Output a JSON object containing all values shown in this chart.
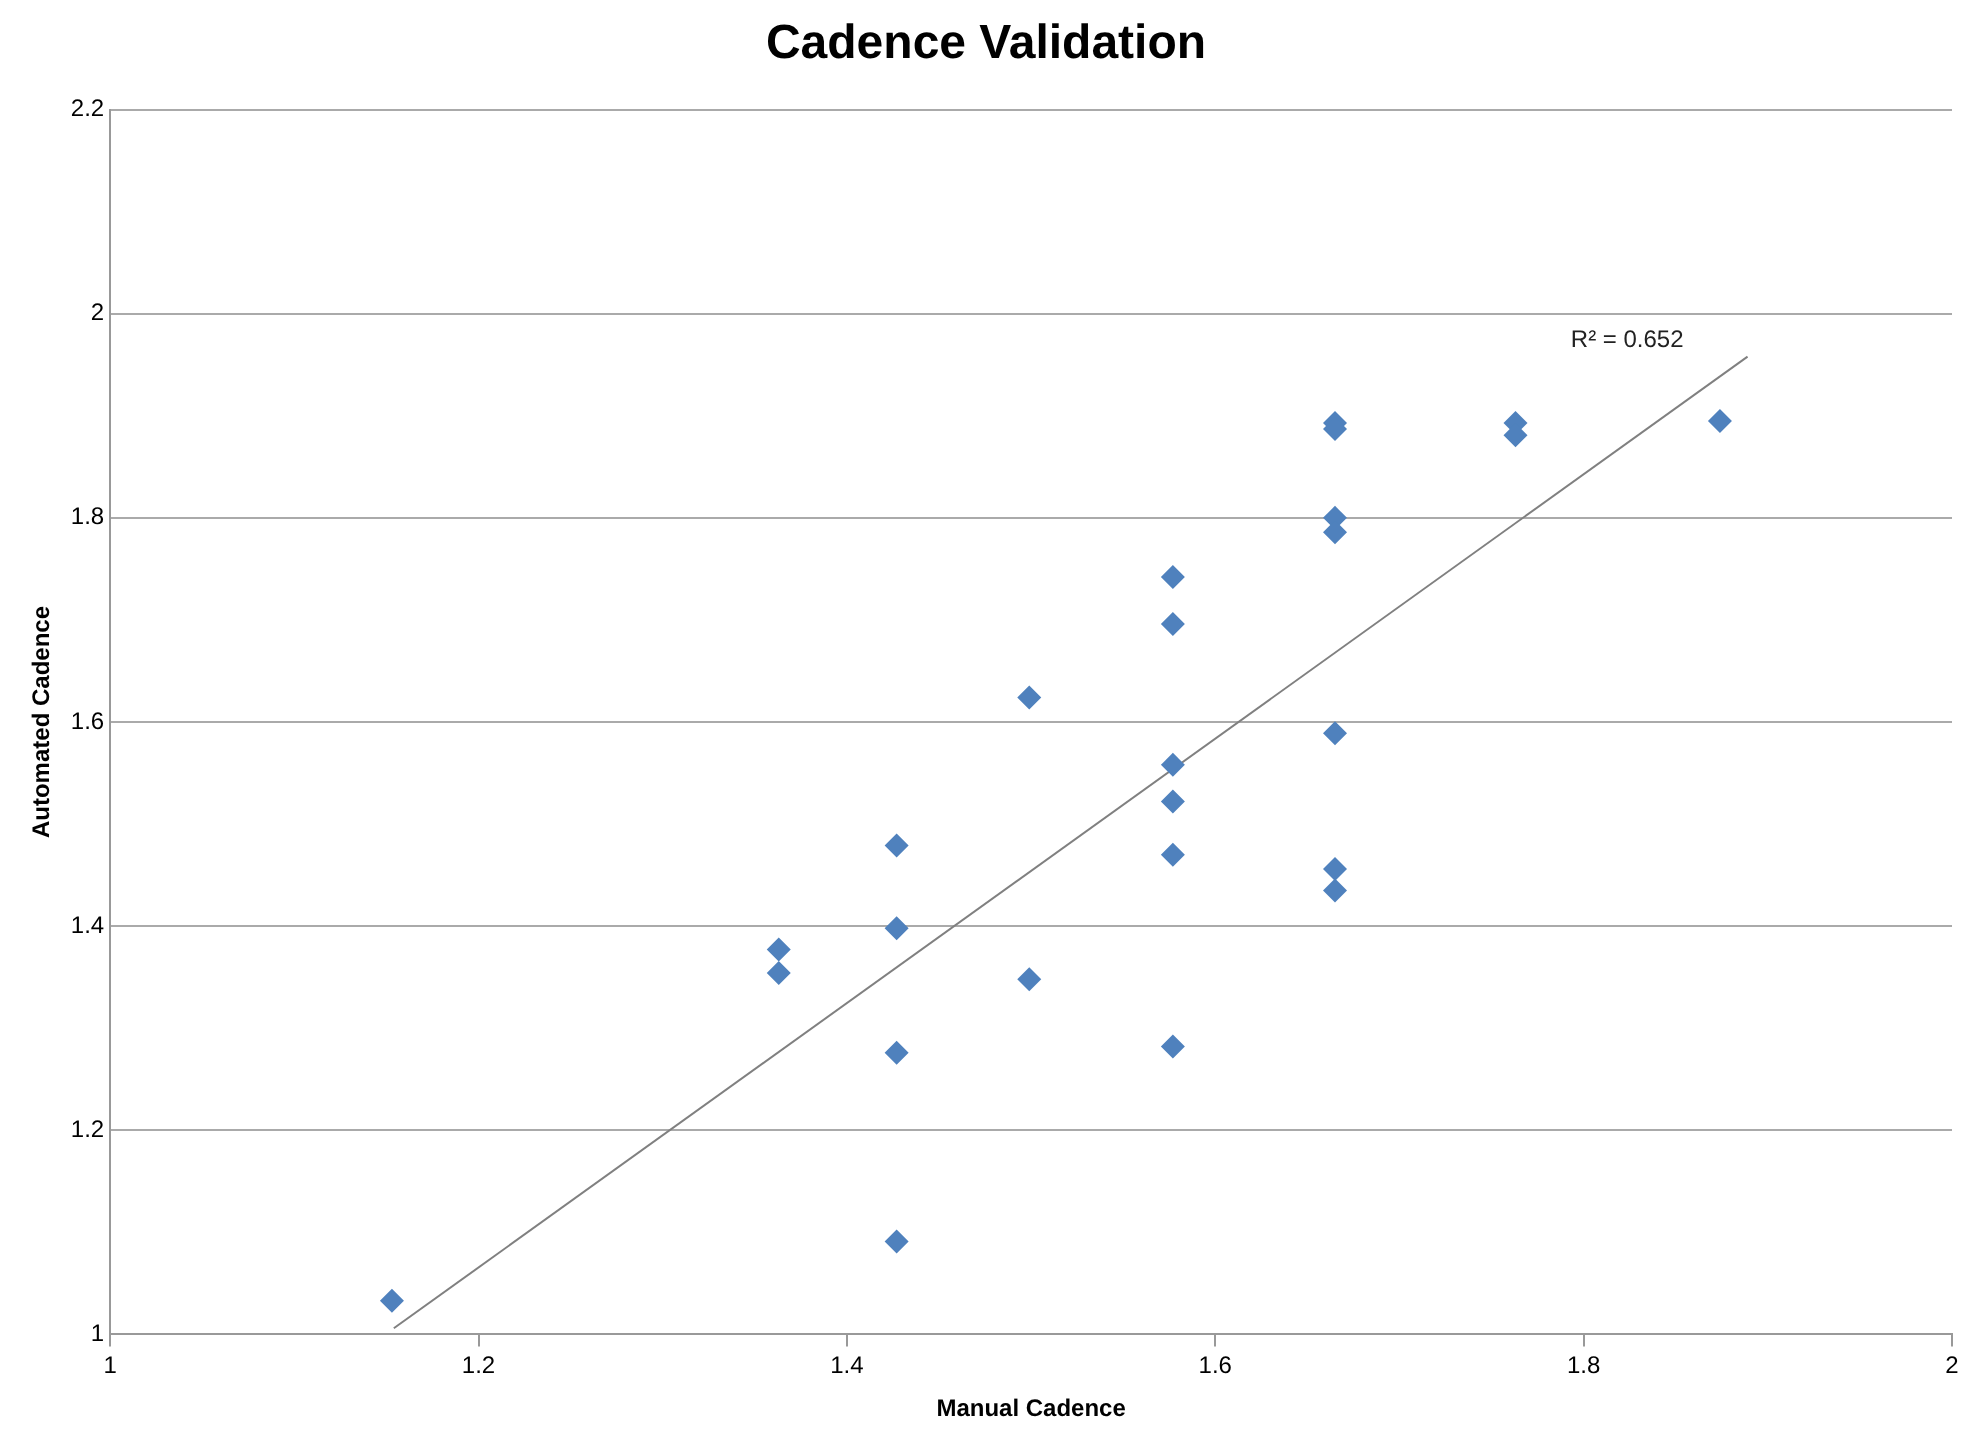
{
  "chart_data": {
    "type": "scatter",
    "title": "Cadence Validation",
    "xlabel": "Manual Cadence",
    "ylabel": "Automated Cadence",
    "xlim": [
      1,
      2
    ],
    "xticks": [
      1,
      1.2,
      1.4,
      1.6,
      1.8,
      2
    ],
    "ylim": [
      1,
      2.2
    ],
    "yticks": [
      1,
      1.2,
      1.4,
      1.6,
      1.8,
      2,
      2.2
    ],
    "grid": "y",
    "legend": false,
    "marker": "diamond",
    "series": [
      {
        "type": "scatter",
        "color": "#4f81bd",
        "x": [
          1.153,
          1.363,
          1.363,
          1.427,
          1.427,
          1.427,
          1.427,
          1.499,
          1.499,
          1.577,
          1.577,
          1.577,
          1.577,
          1.577,
          1.577,
          1.665,
          1.665,
          1.665,
          1.665,
          1.665,
          1.665,
          1.665,
          1.763,
          1.763,
          1.874
        ],
        "values": [
          1.033,
          1.377,
          1.354,
          1.479,
          1.398,
          1.276,
          1.091,
          1.624,
          1.348,
          1.742,
          1.696,
          1.558,
          1.522,
          1.47,
          1.282,
          1.893,
          1.887,
          1.8,
          1.786,
          1.589,
          1.456,
          1.435,
          1.893,
          1.881,
          1.895
        ]
      },
      {
        "type": "line",
        "color": "#808080",
        "marker": "none",
        "line_style": "solid",
        "x": [
          1.154,
          1.889
        ],
        "values": [
          1.006,
          1.958
        ]
      }
    ],
    "annotations": [
      "R² = 0.652"
    ]
  }
}
